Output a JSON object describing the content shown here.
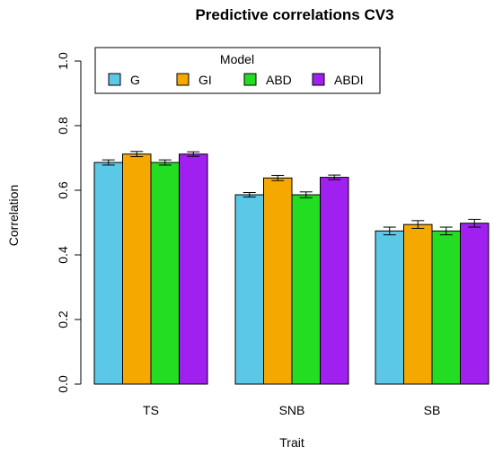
{
  "chart_data": {
    "type": "bar",
    "title": "Predictive correlations CV3",
    "xlabel": "Trait",
    "ylabel": "Correlation",
    "ylim": [
      0,
      1
    ],
    "yticks": [
      "0.0",
      "0.2",
      "0.4",
      "0.6",
      "0.8",
      "1.0"
    ],
    "categories": [
      "TS",
      "SNB",
      "SB"
    ],
    "legend": {
      "title": "Model",
      "placement": "top"
    },
    "series": [
      {
        "name": "G",
        "color": "#5bc8e8",
        "values": [
          0.686,
          0.586,
          0.474
        ],
        "errors": [
          0.008,
          0.007,
          0.012
        ]
      },
      {
        "name": "GI",
        "color": "#f5a800",
        "values": [
          0.712,
          0.638,
          0.494
        ],
        "errors": [
          0.008,
          0.008,
          0.012
        ]
      },
      {
        "name": "ABD",
        "color": "#22dd22",
        "values": [
          0.686,
          0.586,
          0.474
        ],
        "errors": [
          0.008,
          0.009,
          0.012
        ]
      },
      {
        "name": "ABDI",
        "color": "#a020f0",
        "values": [
          0.712,
          0.64,
          0.498
        ],
        "errors": [
          0.007,
          0.007,
          0.012
        ]
      }
    ],
    "grid": false
  }
}
